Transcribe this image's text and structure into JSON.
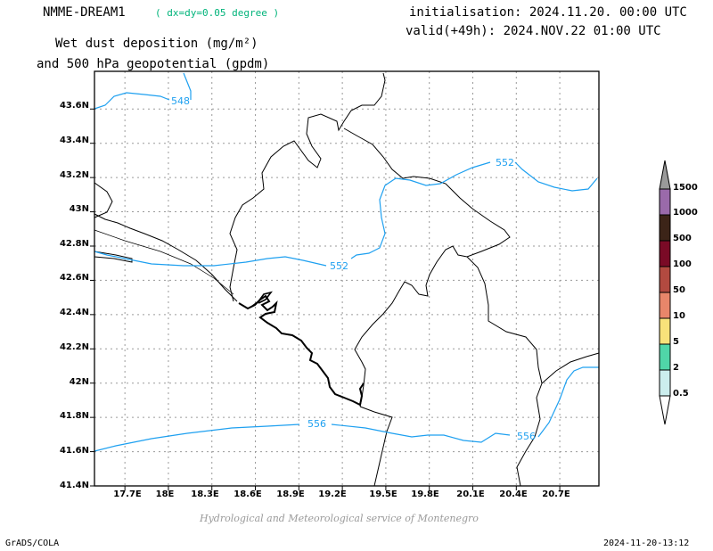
{
  "header": {
    "model": "NMME-DREAM1",
    "resolution": "( dx=dy=0.05 degree )",
    "initialisation": "initialisation: 2024.11.20. 00:00 UTC",
    "valid": "valid(+49h): 2024.NOV.22 01:00 UTC",
    "variable_line1": "Wet dust deposition (mg/m²)",
    "variable_line2": "and 500 hPa geopotential (gpdm)"
  },
  "map": {
    "lat_ticks": [
      "43.6N",
      "43.4N",
      "43.2N",
      "43N",
      "42.8N",
      "42.6N",
      "42.4N",
      "42.2N",
      "42N",
      "41.8N",
      "41.6N",
      "41.4N"
    ],
    "lon_ticks": [
      "17.7E",
      "18E",
      "18.3E",
      "18.6E",
      "18.9E",
      "19.2E",
      "19.5E",
      "19.8E",
      "20.1E",
      "20.4E",
      "20.7E"
    ],
    "lat_values": [
      43.6,
      43.4,
      43.2,
      43.0,
      42.8,
      42.6,
      42.4,
      42.2,
      42.0,
      41.8,
      41.6,
      41.4
    ],
    "lon_values": [
      17.7,
      18.0,
      18.3,
      18.6,
      18.9,
      19.2,
      19.5,
      19.8,
      20.1,
      20.4,
      20.7
    ],
    "contour_labels": [
      "548",
      "552",
      "552",
      "556",
      "556"
    ],
    "contour_color": "#1ea0f0",
    "border_color": "#000000",
    "grid_color": "#9a9a9a",
    "grid": true
  },
  "colorbar": {
    "levels": [
      "1500",
      "1000",
      "500",
      "100",
      "50",
      "10",
      "5",
      "2",
      "0.5"
    ],
    "colors": [
      "#9a9a9a",
      "#9a6aaa",
      "#3c2418",
      "#7a0a26",
      "#b24a40",
      "#e8866a",
      "#f8e27a",
      "#50d6a8",
      "#cceeee",
      "#ffffff"
    ]
  },
  "footer": {
    "credit": "Hydrological and Meteorological service of Montenegro",
    "software": "GrADS/COLA",
    "timestamp": "2024-11-20-13:12"
  }
}
